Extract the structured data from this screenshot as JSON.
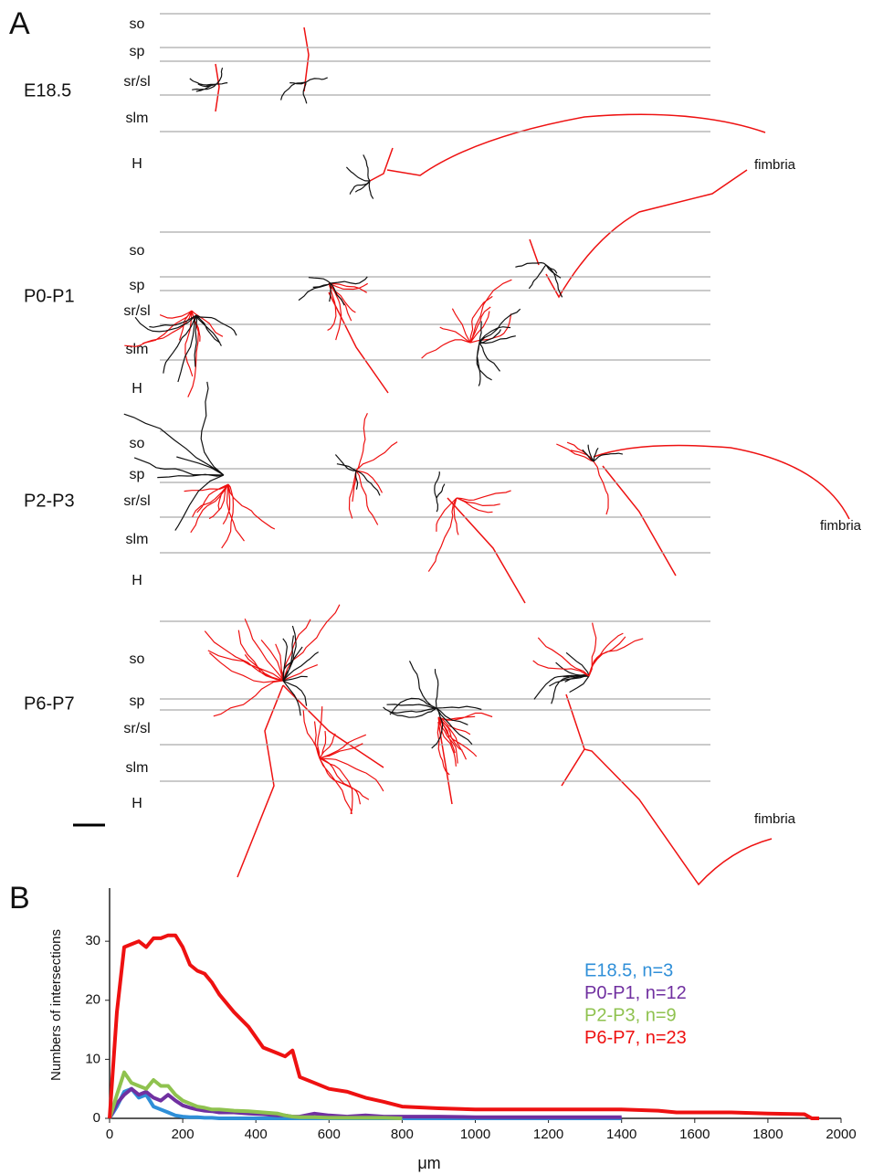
{
  "panel_a": {
    "label": "A",
    "rows": [
      {
        "label": "E18.5",
        "layers": [
          "so",
          "sp",
          "sr/sl",
          "slm",
          "H"
        ]
      },
      {
        "label": "P0-P1",
        "layers": [
          "so",
          "sp",
          "sr/sl",
          "slm",
          "H"
        ]
      },
      {
        "label": "P2-P3",
        "layers": [
          "so",
          "sp",
          "sr/sl",
          "slm",
          "H"
        ]
      },
      {
        "label": "P6-P7",
        "layers": [
          "so",
          "sp",
          "sr/sl",
          "slm",
          "H"
        ]
      }
    ],
    "annotations": [
      "fimbria",
      "fimbria",
      "fimbria"
    ]
  },
  "panel_b_label": "B",
  "chart_data": {
    "type": "line",
    "y_label": "Numbers of intersections",
    "x_label": "μm",
    "x": [
      0,
      20,
      40,
      60,
      80,
      100,
      120,
      140,
      160,
      180,
      200,
      220,
      240,
      260,
      280,
      300,
      340,
      380,
      420,
      460,
      480,
      500,
      520,
      560,
      600,
      650,
      700,
      750,
      800,
      900,
      1000,
      1100,
      1200,
      1300,
      1400,
      1500,
      1550,
      1600,
      1700,
      1800,
      1900,
      1920,
      1940
    ],
    "xlim": [
      0,
      2000
    ],
    "xticks": [
      0,
      200,
      400,
      600,
      800,
      1000,
      1200,
      1400,
      1600,
      1800,
      2000
    ],
    "ylim": [
      0,
      39
    ],
    "yticks": [
      0,
      10,
      20,
      30
    ],
    "series": [
      {
        "name": "E18.5, n=3",
        "color": "#2f8fd8",
        "values": [
          0,
          2,
          4.5,
          5,
          3.5,
          4,
          2,
          1.5,
          1,
          0.5,
          0.3,
          0.2,
          0.2,
          0.1,
          0.1,
          0,
          0,
          0,
          0,
          0,
          0,
          0,
          0,
          0,
          0,
          0,
          0,
          0,
          0,
          0,
          0,
          0,
          0,
          0,
          0,
          null,
          null,
          null,
          null,
          null,
          null,
          null,
          null
        ]
      },
      {
        "name": "P0-P1, n=12",
        "color": "#7030a0",
        "values": [
          0,
          2.5,
          4,
          5,
          4,
          4.5,
          3.5,
          3,
          4,
          3,
          2.2,
          1.8,
          1.5,
          1.3,
          1.2,
          1,
          1,
          0.8,
          0.7,
          0.5,
          0.5,
          0.3,
          0.3,
          0.8,
          0.5,
          0.3,
          0.5,
          0.3,
          0.3,
          0.3,
          0.2,
          0.2,
          0.2,
          0.2,
          0.2,
          null,
          null,
          null,
          null,
          null,
          null,
          null,
          null
        ]
      },
      {
        "name": "P2-P3, n=9",
        "color": "#8fc24f",
        "values": [
          0,
          4,
          7.8,
          6,
          5.5,
          5,
          6.5,
          5.5,
          5.5,
          4,
          3,
          2.5,
          2,
          1.8,
          1.5,
          1.5,
          1.3,
          1.2,
          1,
          0.8,
          0.5,
          0.3,
          0.2,
          0.2,
          0.1,
          0.1,
          0.1,
          0.1,
          0,
          null,
          null,
          null,
          null,
          null,
          null,
          null,
          null,
          null,
          null,
          null,
          null,
          null,
          null
        ]
      },
      {
        "name": "P6-P7, n=23",
        "color": "#ee1111",
        "values": [
          0,
          18,
          29,
          29.5,
          30,
          29,
          30.5,
          30.5,
          31,
          31,
          29,
          26,
          25,
          24.5,
          23,
          21,
          18,
          15.5,
          12,
          11,
          10.5,
          11.5,
          7,
          6,
          5,
          4.5,
          3.5,
          2.8,
          2,
          1.7,
          1.5,
          1.5,
          1.5,
          1.5,
          1.5,
          1.3,
          1,
          1,
          1,
          0.8,
          0.7,
          0,
          0
        ]
      }
    ]
  }
}
